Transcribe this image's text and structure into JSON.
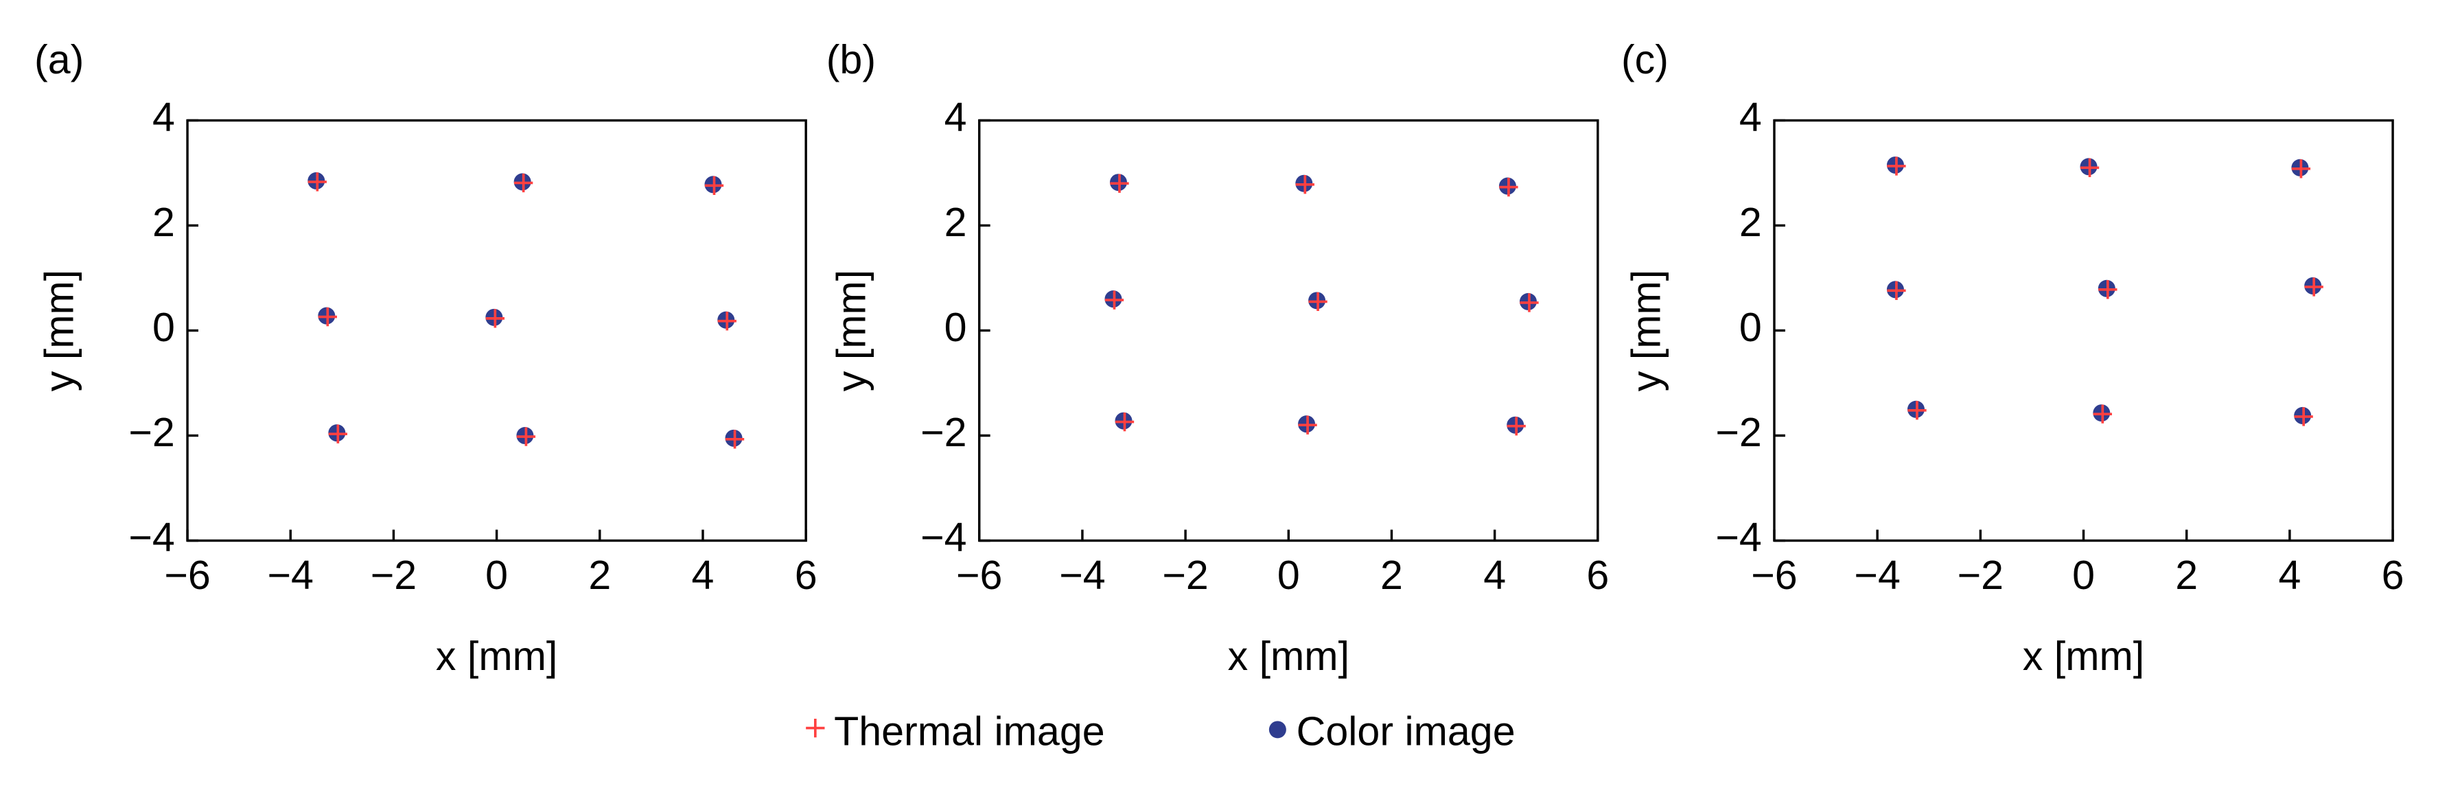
{
  "chart_data": [
    {
      "type": "scatter",
      "panel_label": "(a)",
      "xlabel": "x [mm]",
      "ylabel": "y [mm]",
      "xlim": [
        -6,
        6
      ],
      "ylim": [
        -4,
        4
      ],
      "xticks": [
        {
          "value": -6,
          "label": "−6"
        },
        {
          "value": -4,
          "label": "−4"
        },
        {
          "value": -2,
          "label": "−2"
        },
        0,
        2,
        4,
        6
      ],
      "yticks": [
        {
          "value": -4,
          "label": "−4"
        },
        {
          "value": -2,
          "label": "−2"
        },
        0,
        2,
        4
      ],
      "grid": false,
      "series": [
        {
          "name": "Color image",
          "color": "#2f3d8f",
          "marker": "dot",
          "x": [
            -3.5,
            0.5,
            4.2,
            -3.3,
            -0.05,
            4.45,
            -3.1,
            0.55,
            4.6
          ],
          "values": [
            2.85,
            2.83,
            2.78,
            0.28,
            0.25,
            0.2,
            -1.95,
            -2.0,
            -2.05
          ]
        },
        {
          "name": "Thermal image",
          "color": "#ff4040",
          "marker": "plus",
          "x": [
            -3.48,
            0.52,
            4.22,
            -3.28,
            -0.03,
            4.47,
            -3.08,
            0.57,
            4.62
          ],
          "values": [
            2.83,
            2.81,
            2.76,
            0.26,
            0.23,
            0.18,
            -1.97,
            -2.02,
            -2.07
          ]
        }
      ]
    },
    {
      "type": "scatter",
      "panel_label": "(b)",
      "xlabel": "x [mm]",
      "ylabel": "y [mm]",
      "xlim": [
        -6,
        6
      ],
      "ylim": [
        -4,
        4
      ],
      "xticks": [
        {
          "value": -6,
          "label": "−6"
        },
        {
          "value": -4,
          "label": "−4"
        },
        {
          "value": -2,
          "label": "−2"
        },
        0,
        2,
        4,
        6
      ],
      "yticks": [
        {
          "value": -4,
          "label": "−4"
        },
        {
          "value": -2,
          "label": "−2"
        },
        0,
        2,
        4
      ],
      "grid": false,
      "series": [
        {
          "name": "Color image",
          "color": "#2f3d8f",
          "marker": "dot",
          "x": [
            -3.3,
            0.3,
            4.25,
            -3.4,
            0.55,
            4.65,
            -3.2,
            0.35,
            4.4
          ],
          "values": [
            2.82,
            2.8,
            2.75,
            0.6,
            0.57,
            0.55,
            -1.72,
            -1.78,
            -1.8
          ]
        },
        {
          "name": "Thermal image",
          "color": "#ff4040",
          "marker": "plus",
          "x": [
            -3.28,
            0.32,
            4.27,
            -3.38,
            0.57,
            4.67,
            -3.18,
            0.37,
            4.42
          ],
          "values": [
            2.8,
            2.78,
            2.73,
            0.58,
            0.55,
            0.53,
            -1.74,
            -1.8,
            -1.82
          ]
        }
      ]
    },
    {
      "type": "scatter",
      "panel_label": "(c)",
      "xlabel": "x [mm]",
      "ylabel": "y [mm]",
      "xlim": [
        -6,
        6
      ],
      "ylim": [
        -4,
        4
      ],
      "xticks": [
        {
          "value": -6,
          "label": "−6"
        },
        {
          "value": -4,
          "label": "−4"
        },
        {
          "value": -2,
          "label": "−2"
        },
        0,
        2,
        4,
        6
      ],
      "yticks": [
        {
          "value": -4,
          "label": "−4"
        },
        {
          "value": -2,
          "label": "−2"
        },
        0,
        2,
        4
      ],
      "grid": false,
      "series": [
        {
          "name": "Color image",
          "color": "#2f3d8f",
          "marker": "dot",
          "x": [
            -3.65,
            0.1,
            4.2,
            -3.65,
            0.45,
            4.45,
            -3.25,
            0.35,
            4.25
          ],
          "values": [
            3.15,
            3.12,
            3.1,
            0.78,
            0.8,
            0.85,
            -1.5,
            -1.57,
            -1.62
          ]
        },
        {
          "name": "Thermal image",
          "color": "#ff4040",
          "marker": "plus",
          "x": [
            -3.63,
            0.12,
            4.22,
            -3.63,
            0.47,
            4.47,
            -3.23,
            0.37,
            4.27
          ],
          "values": [
            3.13,
            3.1,
            3.08,
            0.76,
            0.78,
            0.83,
            -1.52,
            -1.59,
            -1.64
          ]
        }
      ]
    }
  ]
}
